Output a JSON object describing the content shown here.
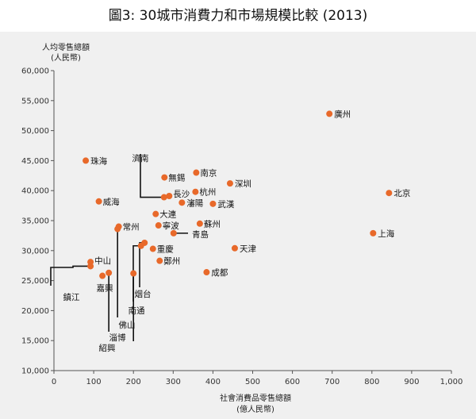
{
  "title": "圖3: 30城市消費力和市場規模比較 (2013)",
  "chart_data": {
    "type": "scatter",
    "title": "圖3: 30城市消費力和市場規模比較 (2013)",
    "xlabel": "社會消費品零售總額",
    "xlabel_unit": "(億人民幣)",
    "ylabel": "人均零售總額",
    "ylabel_unit": "(人民幣)",
    "xlim": [
      0,
      1000
    ],
    "ylim": [
      10000,
      60000
    ],
    "x_ticks": [
      "0",
      "100",
      "200",
      "300",
      "400",
      "500",
      "600",
      "700",
      "800",
      "900",
      "1,000"
    ],
    "y_ticks": [
      "10,000",
      "15,000",
      "20,000",
      "25,000",
      "30,000",
      "35,000",
      "40,000",
      "45,000",
      "50,000",
      "55,000",
      "60,000"
    ],
    "grid": false,
    "point_color": "#e8692a",
    "points": [
      {
        "name": "廣州",
        "x": 693,
        "y": 52800
      },
      {
        "name": "北京",
        "x": 843,
        "y": 39600
      },
      {
        "name": "上海",
        "x": 803,
        "y": 32900
      },
      {
        "name": "珠海",
        "x": 80,
        "y": 45000
      },
      {
        "name": "濟南",
        "x": 277,
        "y": 38900
      },
      {
        "name": "無錫",
        "x": 278,
        "y": 42200
      },
      {
        "name": "南京",
        "x": 358,
        "y": 43000
      },
      {
        "name": "深圳",
        "x": 443,
        "y": 41200
      },
      {
        "name": "長沙",
        "x": 290,
        "y": 39100
      },
      {
        "name": "杭州",
        "x": 356,
        "y": 39800
      },
      {
        "name": "威海",
        "x": 113,
        "y": 38200
      },
      {
        "name": "瀋陽",
        "x": 322,
        "y": 38000
      },
      {
        "name": "武漢",
        "x": 400,
        "y": 37800
      },
      {
        "name": "大連",
        "x": 256,
        "y": 36100
      },
      {
        "name": "蘇州",
        "x": 367,
        "y": 34500
      },
      {
        "name": "常州",
        "x": 163,
        "y": 34000
      },
      {
        "name": "寧波",
        "x": 263,
        "y": 34200
      },
      {
        "name": "青島",
        "x": 301,
        "y": 32900
      },
      {
        "name": "佛山",
        "x": 160,
        "y": 33600
      },
      {
        "name": "南通",
        "x": 219,
        "y": 30800
      },
      {
        "name": "烟台",
        "x": 228,
        "y": 31300
      },
      {
        "name": "天津",
        "x": 455,
        "y": 30400
      },
      {
        "name": "重慶",
        "x": 249,
        "y": 30300
      },
      {
        "name": "鄭州",
        "x": 266,
        "y": 28300
      },
      {
        "name": "中山",
        "x": 92,
        "y": 28100
      },
      {
        "name": "鎮江",
        "x": 92,
        "y": 27400
      },
      {
        "name": "成都",
        "x": 384,
        "y": 26400
      },
      {
        "name": "淄博",
        "x": 138,
        "y": 26300
      },
      {
        "name": "嘉興",
        "x": 122,
        "y": 25800
      },
      {
        "name": "紹興",
        "x": 200,
        "y": 26200
      }
    ]
  }
}
